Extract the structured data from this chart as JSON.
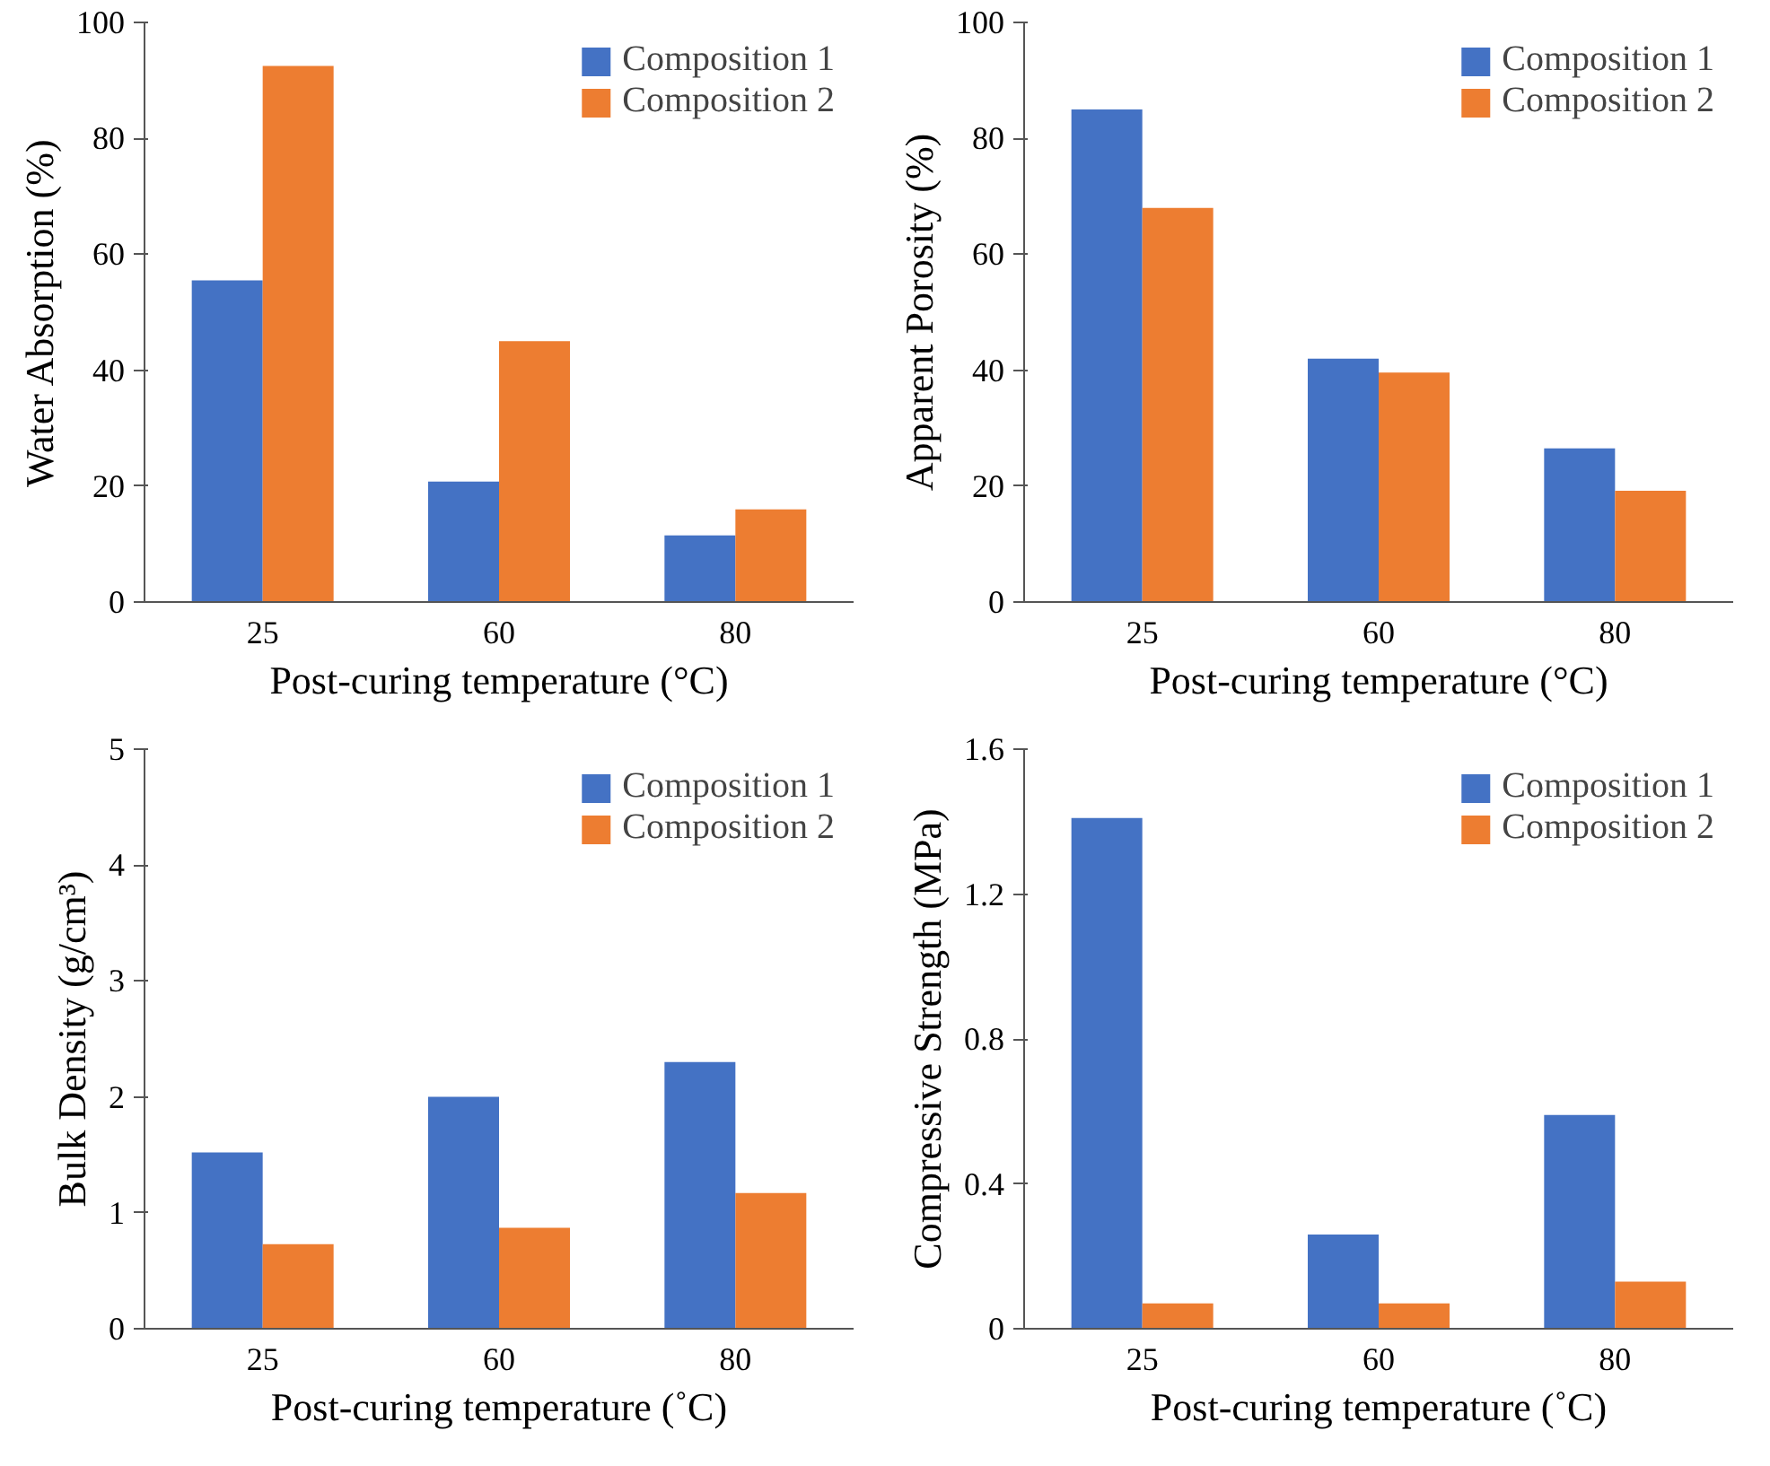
{
  "chart_data": [
    {
      "type": "bar",
      "categories": [
        "25",
        "60",
        "80"
      ],
      "xlabel": "Post-curing temperature (°C)",
      "ylabel": "Water Absorption (%)",
      "ylim": [
        0,
        100
      ],
      "yticks": [
        0,
        20,
        40,
        60,
        80,
        100
      ],
      "legend": "top right",
      "grid": false,
      "series": [
        {
          "name": "Composition 1",
          "color": "#4472c4",
          "values": [
            55.5,
            20.8,
            11.5
          ]
        },
        {
          "name": "Composition 2",
          "color": "#ed7d31",
          "values": [
            92.5,
            45,
            16
          ]
        }
      ]
    },
    {
      "type": "bar",
      "categories": [
        "25",
        "60",
        "80"
      ],
      "xlabel": "Post-curing temperature (°C)",
      "ylabel": "Apparent Porosity (%)",
      "ylim": [
        0,
        100
      ],
      "yticks": [
        0,
        20,
        40,
        60,
        80,
        100
      ],
      "legend": "top right",
      "grid": false,
      "series": [
        {
          "name": "Composition 1",
          "color": "#4472c4",
          "values": [
            85,
            42,
            26.5
          ]
        },
        {
          "name": "Composition 2",
          "color": "#ed7d31",
          "values": [
            68,
            39.6,
            19.2
          ]
        }
      ]
    },
    {
      "type": "bar",
      "categories": [
        "25",
        "60",
        "80"
      ],
      "xlabel": "Post-curing temperature (˚C)",
      "ylabel": "Bulk Density (g/cm³)",
      "ylim": [
        0,
        5
      ],
      "yticks": [
        0,
        1,
        2,
        3,
        4,
        5
      ],
      "legend": "top right",
      "grid": false,
      "series": [
        {
          "name": "Composition 1",
          "color": "#4472c4",
          "values": [
            1.52,
            2.0,
            2.3
          ]
        },
        {
          "name": "Composition 2",
          "color": "#ed7d31",
          "values": [
            0.73,
            0.87,
            1.17
          ]
        }
      ]
    },
    {
      "type": "bar",
      "categories": [
        "25",
        "60",
        "80"
      ],
      "xlabel": "Post-curing temperature (˚C)",
      "ylabel": "Compressive Strength (MPa)",
      "ylim": [
        0,
        1.6
      ],
      "yticks": [
        0,
        0.4,
        0.8,
        1.2,
        1.6
      ],
      "legend": "top right",
      "grid": false,
      "series": [
        {
          "name": "Composition 1",
          "color": "#4472c4",
          "values": [
            1.41,
            0.26,
            0.59
          ]
        },
        {
          "name": "Composition 2",
          "color": "#ed7d31",
          "values": [
            0.07,
            0.07,
            0.13
          ]
        }
      ]
    }
  ]
}
